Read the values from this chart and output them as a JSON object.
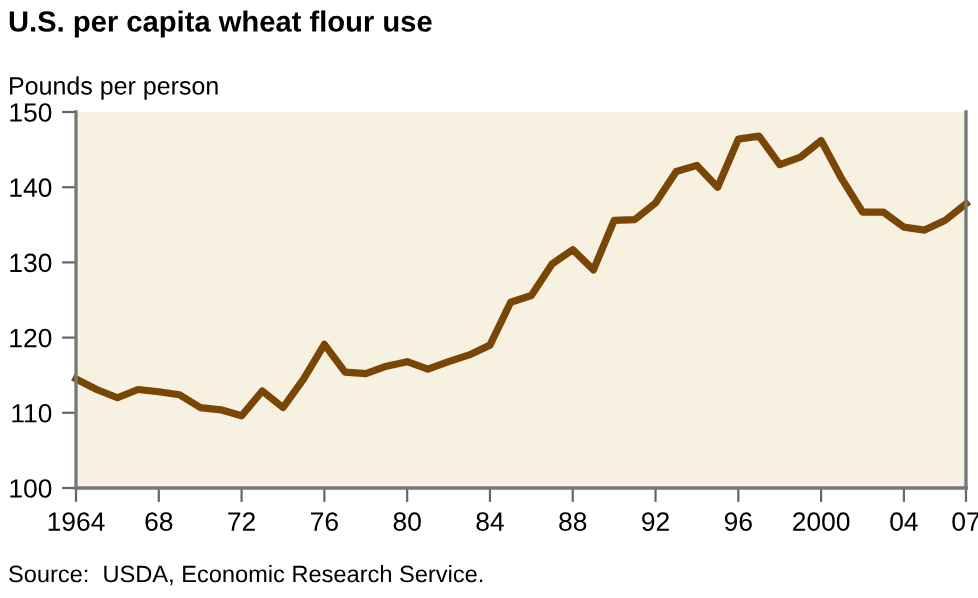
{
  "chart_data": {
    "type": "line",
    "title": "U.S. per capita wheat flour use",
    "ylabel": "Pounds per person",
    "x": [
      1964,
      1965,
      1966,
      1967,
      1968,
      1969,
      1970,
      1971,
      1972,
      1973,
      1974,
      1975,
      1976,
      1977,
      1978,
      1979,
      1980,
      1981,
      1982,
      1983,
      1984,
      1985,
      1986,
      1987,
      1988,
      1989,
      1990,
      1991,
      1992,
      1993,
      1994,
      1995,
      1996,
      1997,
      1998,
      1999,
      2000,
      2001,
      2002,
      2003,
      2004,
      2005,
      2006,
      2007
    ],
    "series": [
      {
        "color": "#7a4606",
        "values": [
          114.5,
          113.1,
          112.0,
          113.1,
          112.8,
          112.4,
          110.7,
          110.4,
          109.6,
          112.9,
          110.7,
          114.5,
          119.1,
          115.4,
          115.2,
          116.2,
          116.8,
          115.8,
          116.8,
          117.7,
          119.0,
          124.7,
          125.6,
          129.8,
          131.7,
          129.0,
          135.6,
          135.7,
          137.9,
          142.1,
          142.9,
          140.0,
          146.4,
          146.8,
          143.0,
          144.0,
          146.2,
          141.1,
          136.7,
          136.7,
          134.7,
          134.3,
          135.6,
          137.8
        ]
      }
    ],
    "xlim": [
      1964,
      2007
    ],
    "xticks": [
      1964,
      {
        "value": 1968,
        "label": "68"
      },
      {
        "value": 1972,
        "label": "72"
      },
      {
        "value": 1976,
        "label": "76"
      },
      {
        "value": 1980,
        "label": "80"
      },
      {
        "value": 1984,
        "label": "84"
      },
      {
        "value": 1988,
        "label": "88"
      },
      {
        "value": 1992,
        "label": "92"
      },
      {
        "value": 1996,
        "label": "96"
      },
      2000,
      {
        "value": 2004,
        "label": "04"
      },
      {
        "value": 2007,
        "label": "07"
      }
    ],
    "ylim": [
      100,
      150
    ],
    "yticks": [
      100,
      110,
      120,
      130,
      140,
      150
    ],
    "grid": false,
    "legend": false,
    "marker": "none",
    "line_style": "solid",
    "annotations": [
      "Source:  USDA, Economic Research Service."
    ]
  }
}
